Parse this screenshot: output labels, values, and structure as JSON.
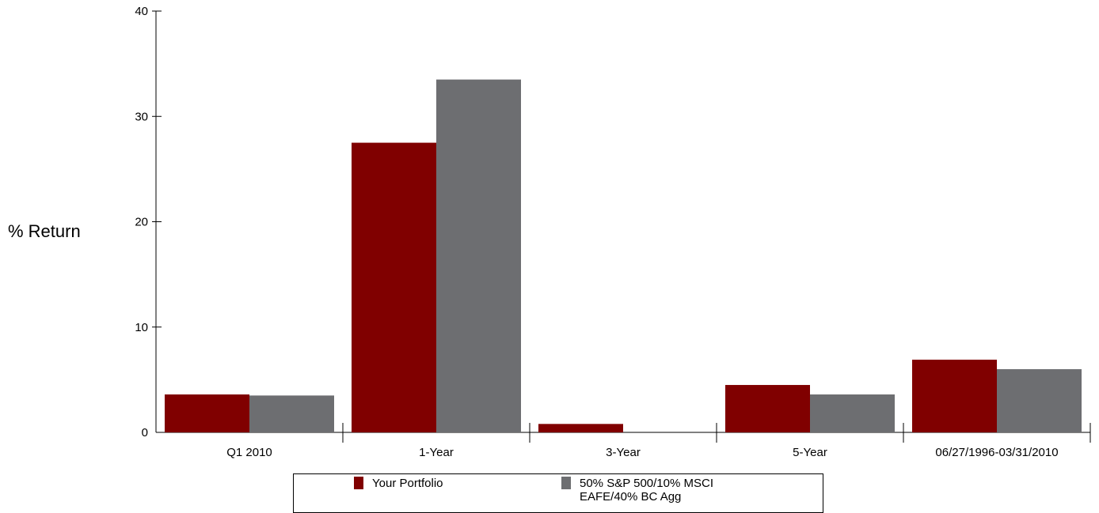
{
  "chart_data": {
    "type": "bar",
    "categories": [
      "Q1 2010",
      "1-Year",
      "3-Year",
      "5-Year",
      "06/27/1996-03/31/2010"
    ],
    "series": [
      {
        "name": "Your Portfolio",
        "values": [
          3.6,
          27.5,
          0.8,
          4.5,
          6.9
        ],
        "color": "#800000"
      },
      {
        "name": "50% S&P 500/10% MSCI EAFE/40% BC Agg",
        "values": [
          3.5,
          33.5,
          0.0,
          3.6,
          6.0
        ],
        "color": "#6d6e71"
      }
    ],
    "title": "",
    "xlabel": "",
    "ylabel": "% Return",
    "ylim": [
      0,
      40
    ],
    "yticks": [
      0,
      10,
      20,
      30,
      40
    ],
    "grid": false,
    "legend_position": "bottom"
  }
}
